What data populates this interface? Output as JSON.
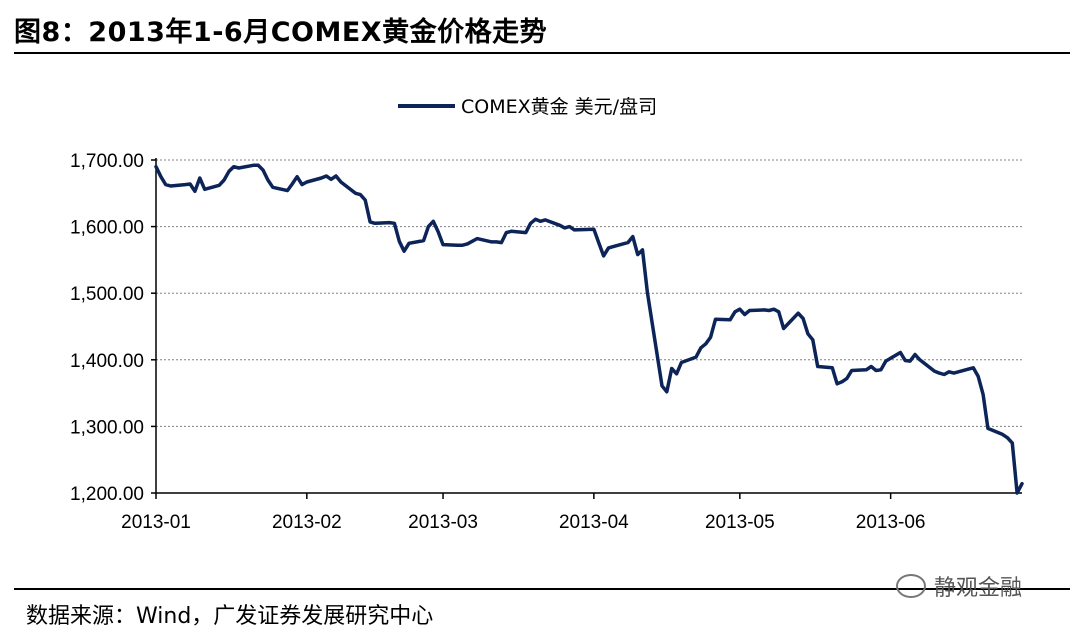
{
  "header": {
    "title": "图8：2013年1-6月COMEX黄金价格走势"
  },
  "footer": {
    "source": "数据来源：Wind，广发证券发展研究中心",
    "watermark": "静观金融",
    "watermark_icon": "wechat-icon"
  },
  "colors": {
    "series": "#0d2459",
    "grid": "#808080",
    "axis": "#000000"
  },
  "chart_data": {
    "type": "line",
    "title": "",
    "xlabel": "",
    "ylabel": "",
    "ylim": [
      1200,
      1700
    ],
    "y_ticks": [
      1200,
      1300,
      1400,
      1500,
      1600,
      1700
    ],
    "y_tick_labels": [
      "1,200.00",
      "1,300.00",
      "1,400.00",
      "1,500.00",
      "1,600.00",
      "1,700.00"
    ],
    "x_tick_labels": [
      "2013-01",
      "2013-02",
      "2013-03",
      "2013-04",
      "2013-05",
      "2013-06"
    ],
    "x_range": [
      "2013-01-01",
      "2013-06-28"
    ],
    "grid": "horizontal dotted",
    "legend": "top-center",
    "series": [
      {
        "name": "COMEX黄金 美元/盘司",
        "x": [
          "2013-01-01",
          "2013-01-02",
          "2013-01-03",
          "2013-01-04",
          "2013-01-07",
          "2013-01-08",
          "2013-01-09",
          "2013-01-10",
          "2013-01-11",
          "2013-01-14",
          "2013-01-15",
          "2013-01-16",
          "2013-01-17",
          "2013-01-18",
          "2013-01-21",
          "2013-01-22",
          "2013-01-23",
          "2013-01-24",
          "2013-01-25",
          "2013-01-28",
          "2013-01-29",
          "2013-01-30",
          "2013-01-31",
          "2013-02-01",
          "2013-02-04",
          "2013-02-05",
          "2013-02-06",
          "2013-02-07",
          "2013-02-08",
          "2013-02-11",
          "2013-02-12",
          "2013-02-13",
          "2013-02-14",
          "2013-02-15",
          "2013-02-18",
          "2013-02-19",
          "2013-02-20",
          "2013-02-21",
          "2013-02-22",
          "2013-02-25",
          "2013-02-26",
          "2013-02-27",
          "2013-02-28",
          "2013-03-01",
          "2013-03-04",
          "2013-03-05",
          "2013-03-06",
          "2013-03-07",
          "2013-03-08",
          "2013-03-11",
          "2013-03-12",
          "2013-03-13",
          "2013-03-14",
          "2013-03-15",
          "2013-03-18",
          "2013-03-19",
          "2013-03-20",
          "2013-03-21",
          "2013-03-22",
          "2013-03-25",
          "2013-03-26",
          "2013-03-27",
          "2013-03-28",
          "2013-04-01",
          "2013-04-02",
          "2013-04-03",
          "2013-04-04",
          "2013-04-05",
          "2013-04-08",
          "2013-04-09",
          "2013-04-10",
          "2013-04-11",
          "2013-04-12",
          "2013-04-15",
          "2013-04-16",
          "2013-04-17",
          "2013-04-18",
          "2013-04-19",
          "2013-04-22",
          "2013-04-23",
          "2013-04-24",
          "2013-04-25",
          "2013-04-26",
          "2013-04-29",
          "2013-04-30",
          "2013-05-01",
          "2013-05-02",
          "2013-05-03",
          "2013-05-06",
          "2013-05-07",
          "2013-05-08",
          "2013-05-09",
          "2013-05-10",
          "2013-05-13",
          "2013-05-14",
          "2013-05-15",
          "2013-05-16",
          "2013-05-17",
          "2013-05-20",
          "2013-05-21",
          "2013-05-22",
          "2013-05-23",
          "2013-05-24",
          "2013-05-27",
          "2013-05-28",
          "2013-05-29",
          "2013-05-30",
          "2013-05-31",
          "2013-06-03",
          "2013-06-04",
          "2013-06-05",
          "2013-06-06",
          "2013-06-07",
          "2013-06-10",
          "2013-06-11",
          "2013-06-12",
          "2013-06-13",
          "2013-06-14",
          "2013-06-17",
          "2013-06-18",
          "2013-06-19",
          "2013-06-20",
          "2013-06-21",
          "2013-06-24",
          "2013-06-25",
          "2013-06-26",
          "2013-06-27",
          "2013-06-28"
        ],
        "y": [
          1690,
          1675,
          1663,
          1661,
          1663,
          1664,
          1653,
          1673,
          1656,
          1662,
          1670,
          1683,
          1690,
          1688,
          1692,
          1692,
          1685,
          1670,
          1659,
          1654,
          1664,
          1675,
          1663,
          1667,
          1673,
          1676,
          1671,
          1676,
          1667,
          1650,
          1648,
          1640,
          1607,
          1605,
          1606,
          1605,
          1578,
          1563,
          1575,
          1579,
          1600,
          1608,
          1592,
          1573,
          1572,
          1572,
          1574,
          1578,
          1582,
          1577,
          1577,
          1576,
          1591,
          1593,
          1591,
          1605,
          1611,
          1608,
          1610,
          1602,
          1598,
          1600,
          1595,
          1596,
          1576,
          1556,
          1568,
          1570,
          1576,
          1585,
          1558,
          1565,
          1501,
          1361,
          1352,
          1387,
          1379,
          1396,
          1404,
          1418,
          1424,
          1434,
          1461,
          1460,
          1472,
          1476,
          1468,
          1474,
          1475,
          1474,
          1476,
          1472,
          1447,
          1470,
          1462,
          1439,
          1430,
          1390,
          1388,
          1364,
          1367,
          1372,
          1384,
          1385,
          1390,
          1384,
          1385,
          1398,
          1411,
          1399,
          1398,
          1408,
          1400,
          1383,
          1380,
          1378,
          1382,
          1380,
          1386,
          1388,
          1375,
          1348,
          1297,
          1288,
          1283,
          1275,
          1200,
          1214
        ]
      }
    ]
  }
}
